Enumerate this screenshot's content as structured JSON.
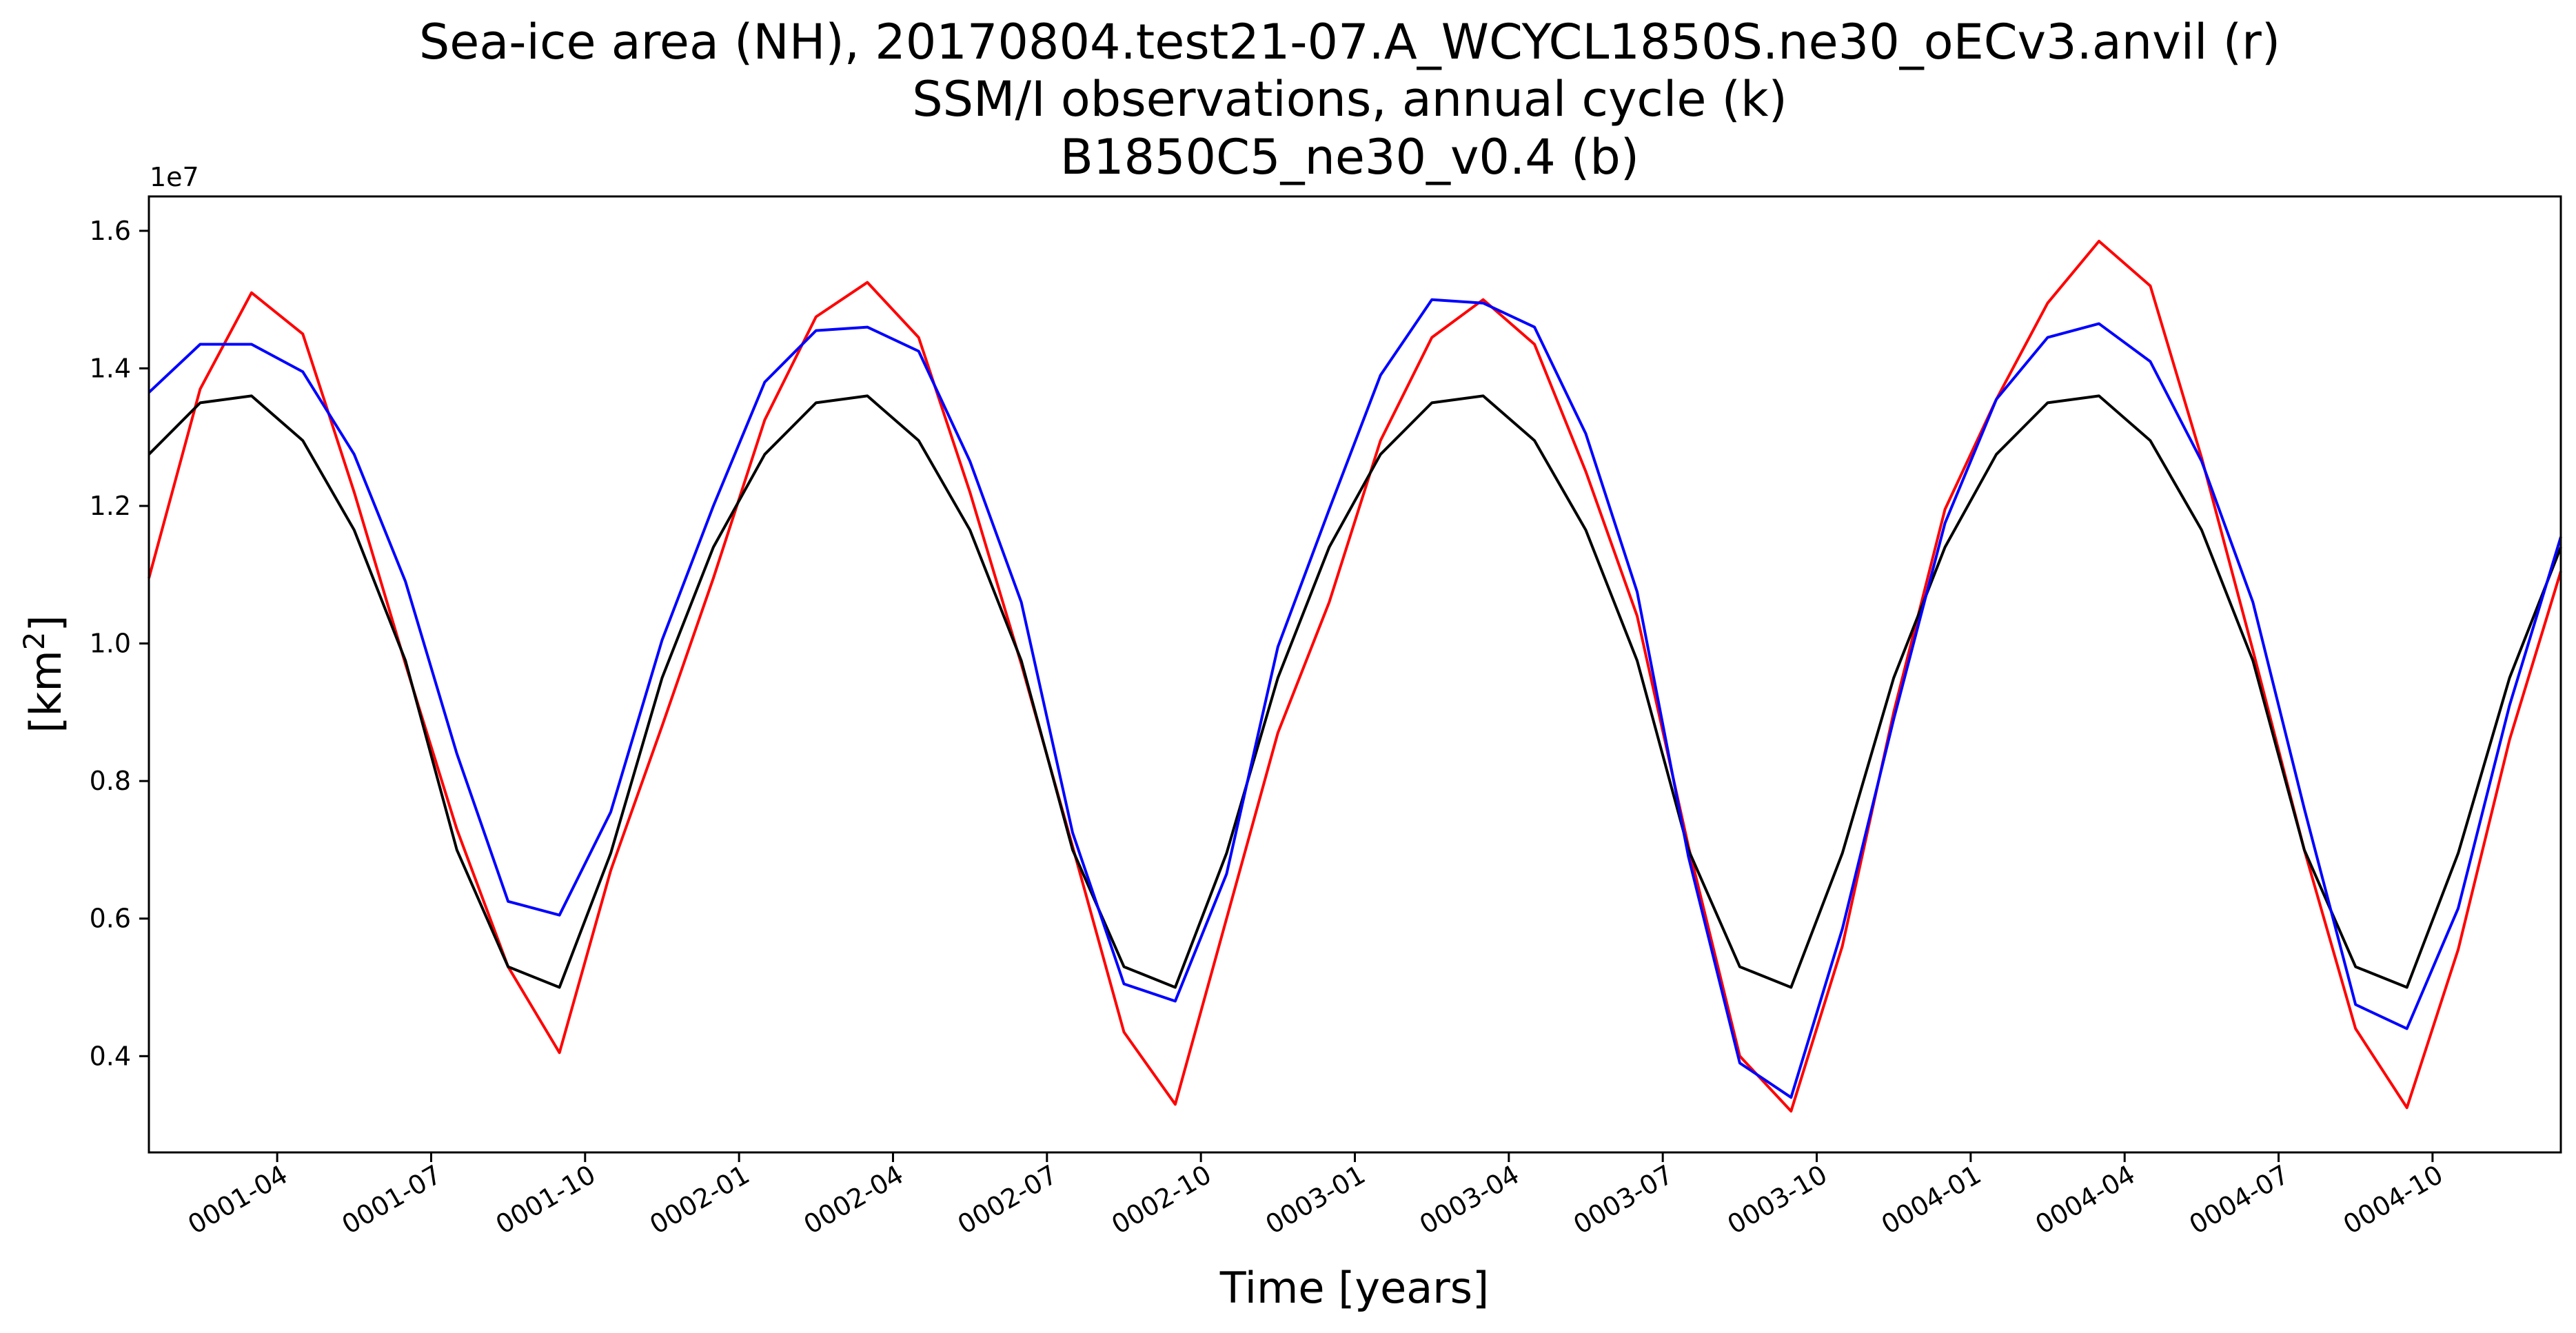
{
  "chart_data": {
    "type": "line",
    "title_lines": [
      "Sea-ice area (NH), 20170804.test21-07.A_WCYCL1850S.ne30_oECv3.anvil (r)",
      "SSM/I observations, annual cycle (k)",
      "B1850C5_ne30_v0.4 (b)"
    ],
    "xlabel": "Time [years]",
    "ylabel_text": "[km",
    "ylabel_sup": "2",
    "ylabel_close": "]",
    "y_offset_label": "1e7",
    "ylim": [
      2.6,
      16.5
    ],
    "y_scale_note": "values in units of 1e6 km^2 (axis multiplier 1e7)",
    "y_ticks": [
      4,
      6,
      8,
      10,
      12,
      14,
      16
    ],
    "y_tick_labels": [
      "0.4",
      "0.6",
      "0.8",
      "1.0",
      "1.2",
      "1.4",
      "1.6"
    ],
    "x_ticks": [
      3,
      6,
      9,
      12,
      15,
      18,
      21,
      24,
      27,
      30,
      33,
      36,
      39,
      42,
      45
    ],
    "x_tick_labels": [
      "0001-04",
      "0001-07",
      "0001-10",
      "0002-01",
      "0002-04",
      "0002-07",
      "0002-10",
      "0003-01",
      "0003-04",
      "0003-07",
      "0003-10",
      "0004-01",
      "0004-04",
      "0004-07",
      "0004-10"
    ],
    "x": [
      0.5,
      1.5,
      2.5,
      3.5,
      4.5,
      5.5,
      6.5,
      7.5,
      8.5,
      9.5,
      10.5,
      11.5,
      12.5,
      13.5,
      14.5,
      15.5,
      16.5,
      17.5,
      18.5,
      19.5,
      20.5,
      21.5,
      22.5,
      23.5,
      24.5,
      25.5,
      26.5,
      27.5,
      28.5,
      29.5,
      30.5,
      31.5,
      32.5,
      33.5,
      34.5,
      35.5,
      36.5,
      37.5,
      38.5,
      39.5,
      40.5,
      41.5,
      42.5,
      43.5,
      44.5,
      45.5,
      46.5,
      47.5
    ],
    "xlim": [
      0.5,
      47.5
    ],
    "series": [
      {
        "color": "#ff0000",
        "values": [
          10.95,
          13.7,
          15.1,
          14.5,
          12.2,
          9.7,
          7.3,
          5.3,
          4.05,
          6.7,
          8.8,
          10.95,
          13.25,
          14.75,
          15.25,
          14.45,
          12.2,
          9.7,
          7.05,
          4.35,
          3.3,
          6.0,
          8.7,
          10.6,
          12.95,
          14.45,
          15.0,
          14.35,
          12.5,
          10.4,
          7.05,
          4.0,
          3.2,
          5.6,
          9.0,
          11.95,
          13.55,
          14.95,
          15.85,
          15.2,
          12.7,
          9.9,
          7.0,
          4.4,
          3.25,
          5.55,
          8.6,
          11.05
        ]
      },
      {
        "color": "#000000",
        "values": [
          12.75,
          13.5,
          13.6,
          12.95,
          11.65,
          9.75,
          7.0,
          5.3,
          5.0,
          6.95,
          9.5,
          11.4,
          12.75,
          13.5,
          13.6,
          12.95,
          11.65,
          9.75,
          7.0,
          5.3,
          5.0,
          6.95,
          9.5,
          11.4,
          12.75,
          13.5,
          13.6,
          12.95,
          11.65,
          9.75,
          7.0,
          5.3,
          5.0,
          6.95,
          9.5,
          11.4,
          12.75,
          13.5,
          13.6,
          12.95,
          11.65,
          9.75,
          7.0,
          5.3,
          5.0,
          6.95,
          9.5,
          11.4
        ]
      },
      {
        "color": "#0000ff",
        "values": [
          13.65,
          14.35,
          14.35,
          13.95,
          12.75,
          10.9,
          8.4,
          6.25,
          6.05,
          7.55,
          10.05,
          12.0,
          13.8,
          14.55,
          14.6,
          14.25,
          12.65,
          10.6,
          7.25,
          5.05,
          4.8,
          6.65,
          9.95,
          11.95,
          13.9,
          15.0,
          14.95,
          14.6,
          13.05,
          10.75,
          6.9,
          3.9,
          3.4,
          5.85,
          8.9,
          11.75,
          13.55,
          14.45,
          14.65,
          14.1,
          12.65,
          10.6,
          7.6,
          4.75,
          4.4,
          6.15,
          9.1,
          11.55
        ]
      }
    ]
  }
}
